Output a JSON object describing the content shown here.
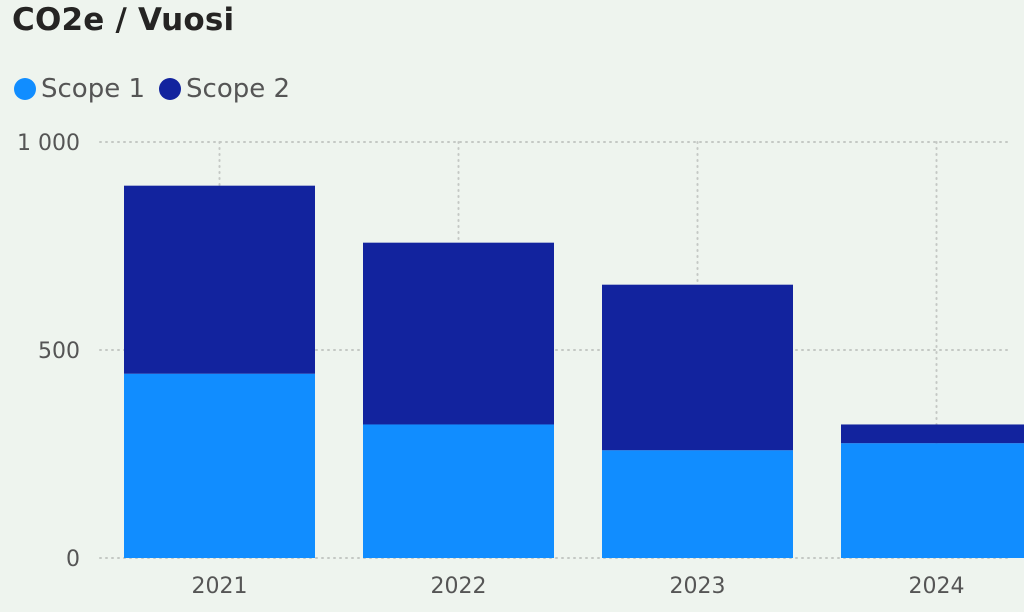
{
  "chart_data": {
    "type": "bar",
    "stacked": true,
    "title": "CO2e / Vuosi",
    "categories": [
      "2021",
      "2022",
      "2023",
      "2024"
    ],
    "series": [
      {
        "name": "Scope 1",
        "color": "#118dff",
        "values": [
          443,
          321,
          259,
          276
        ]
      },
      {
        "name": "Scope 2",
        "color": "#12239e",
        "values": [
          452,
          437,
          398,
          45
        ]
      }
    ],
    "ylim": [
      0,
      1000
    ],
    "yticks": [
      0,
      500,
      1000
    ],
    "ytick_labels": [
      "0",
      "500",
      "1 000"
    ],
    "grid": true,
    "legend": "top-left"
  }
}
